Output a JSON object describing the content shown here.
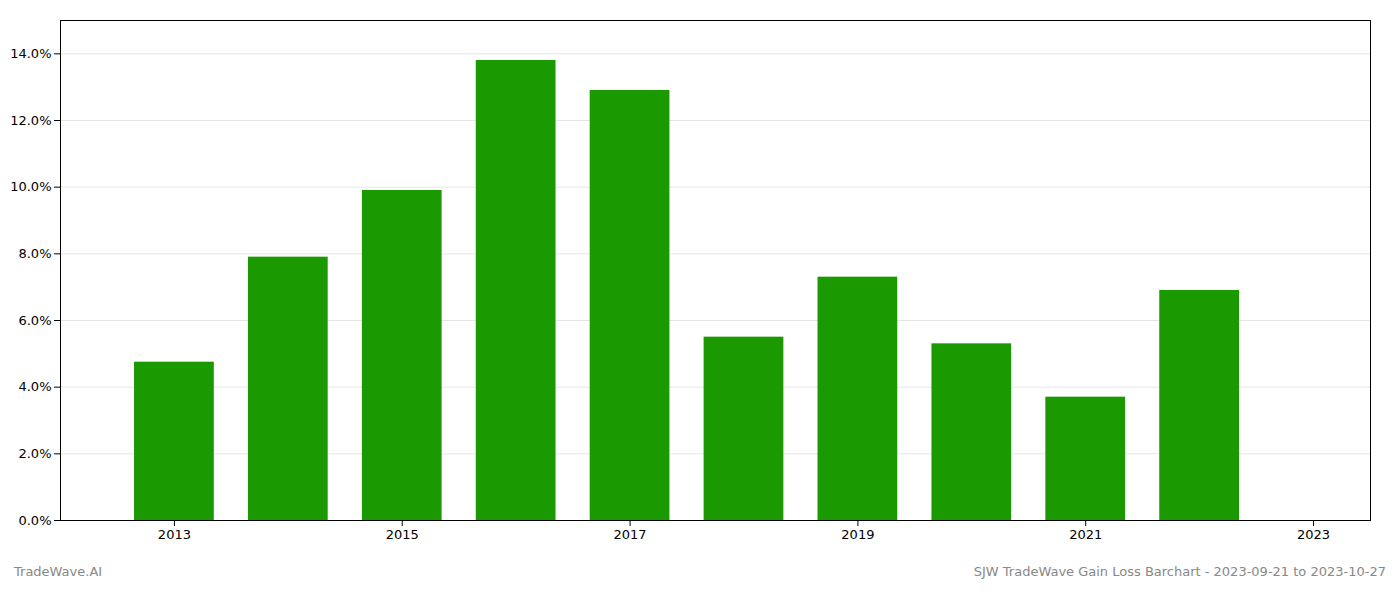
{
  "chart_data": {
    "type": "bar",
    "x": [
      2013,
      2014,
      2015,
      2016,
      2017,
      2018,
      2019,
      2020,
      2021,
      2022
    ],
    "values": [
      0.0475,
      0.079,
      0.099,
      0.138,
      0.129,
      0.055,
      0.073,
      0.053,
      0.037,
      0.069
    ],
    "color": "#1a9a00",
    "xlim": [
      2012.0,
      2023.5
    ],
    "xticks": [
      2013,
      2015,
      2017,
      2019,
      2021,
      2023
    ],
    "ylim": [
      0,
      0.15
    ],
    "yticks": [
      {
        "value": 0.0,
        "label": "0.0%"
      },
      {
        "value": 0.02,
        "label": "2.0%"
      },
      {
        "value": 0.04,
        "label": "4.0%"
      },
      {
        "value": 0.06,
        "label": "6.0%"
      },
      {
        "value": 0.08,
        "label": "8.0%"
      },
      {
        "value": 0.1,
        "label": "10.0%"
      },
      {
        "value": 0.12,
        "label": "12.0%"
      },
      {
        "value": 0.14,
        "label": "14.0%"
      }
    ],
    "grid": true,
    "annotations": [
      "TradeWave.AI",
      "SJW TradeWave Gain Loss Barchart - 2023-09-21 to 2023-10-27"
    ]
  }
}
